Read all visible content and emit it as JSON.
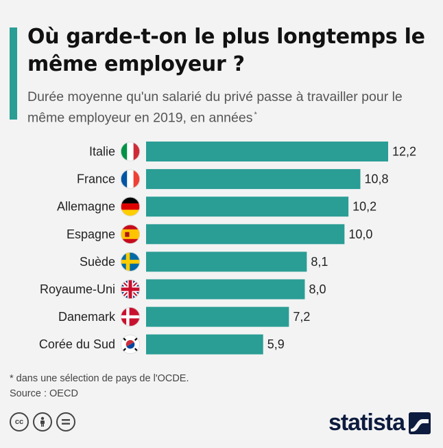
{
  "title": "Où garde-t-on le plus longtemps le même employeur ?",
  "subtitle": "Durée moyenne qu'un salarié du privé passe à travailler pour le même employeur en 2019, en années",
  "subtitle_marker": "*",
  "footnote": "* dans une sélection de pays de l'OCDE.",
  "source": "Source : OECD",
  "logo": {
    "text": "statista",
    "icon": "statista-wave-icon"
  },
  "license_icons": [
    "cc-icon",
    "by-person-icon",
    "nd-equal-icon"
  ],
  "accent_color": "#2a9d95",
  "chart_data": {
    "type": "bar",
    "orientation": "horizontal",
    "categories": [
      "Italie",
      "France",
      "Allemagne",
      "Espagne",
      "Suède",
      "Royaume-Uni",
      "Danemark",
      "Corée du Sud"
    ],
    "flags": [
      "italy-flag-icon",
      "france-flag-icon",
      "germany-flag-icon",
      "spain-flag-icon",
      "sweden-flag-icon",
      "uk-flag-icon",
      "denmark-flag-icon",
      "south-korea-flag-icon"
    ],
    "values": [
      12.2,
      10.8,
      10.2,
      10.0,
      8.1,
      8.0,
      7.2,
      5.9
    ],
    "value_labels": [
      "12,2",
      "10,8",
      "10,2",
      "10,0",
      "8,1",
      "8,0",
      "7,2",
      "5,9"
    ],
    "xlim": [
      0,
      12.2
    ],
    "grid": false,
    "bar_color": "#2a9d95"
  }
}
